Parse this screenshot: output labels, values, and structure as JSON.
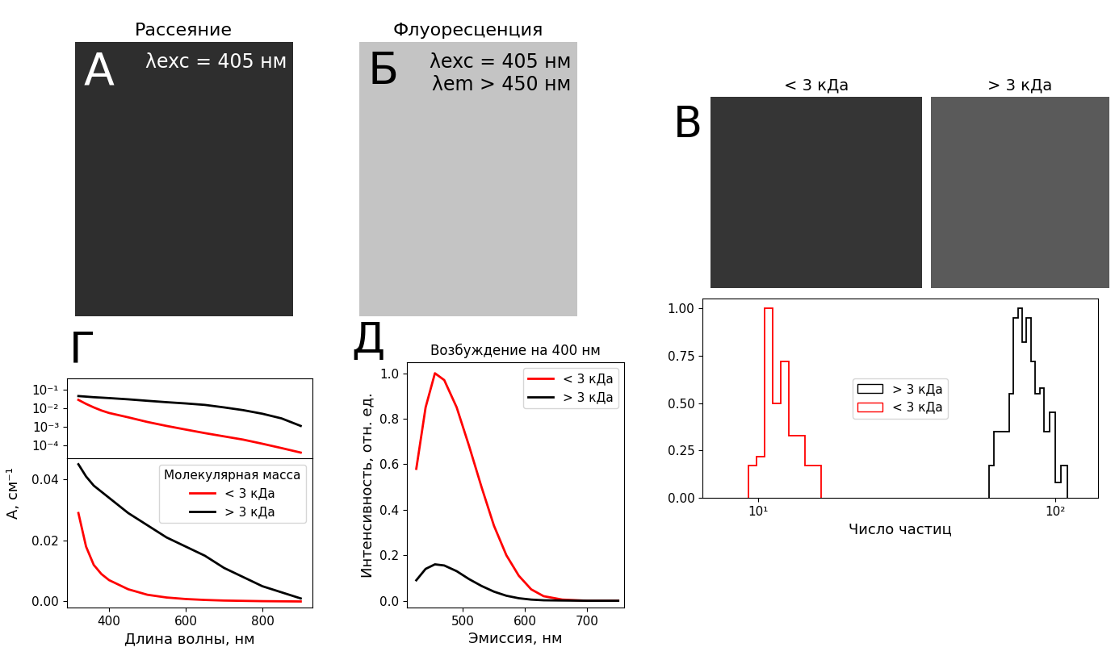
{
  "chart_data": [
    {
      "type": "line",
      "panel": "Г",
      "log": "y",
      "tick_labels": "y",
      "xlim": [
        290,
        930
      ],
      "xticks": [
        400,
        600,
        800
      ],
      "ylim": [
        2e-05,
        0.4
      ],
      "yticks": [
        {
          "value": 0.0001,
          "label": "10⁻⁴"
        },
        {
          "value": 0.001,
          "label": "10⁻³"
        },
        {
          "value": 0.01,
          "label": "10⁻²"
        },
        {
          "value": 0.1,
          "label": "10⁻¹"
        }
      ],
      "x": [
        320,
        340,
        360,
        380,
        400,
        450,
        500,
        550,
        600,
        650,
        700,
        750,
        800,
        850,
        900
      ],
      "series": [
        {
          "name": "< 3 кДа",
          "color": "#ff0000",
          "values": [
            0.028,
            0.017,
            0.011,
            0.0075,
            0.0055,
            0.0032,
            0.0018,
            0.0011,
            0.0007,
            0.00045,
            0.0003,
            0.0002,
            0.00012,
            7e-05,
            4e-05
          ]
        },
        {
          "name": "> 3 кДа",
          "color": "#000000",
          "values": [
            0.045,
            0.042,
            0.039,
            0.037,
            0.035,
            0.03,
            0.025,
            0.021,
            0.018,
            0.015,
            0.011,
            0.0078,
            0.005,
            0.0028,
            0.0011
          ]
        }
      ]
    },
    {
      "type": "line",
      "x_label": "Длина волны, нм",
      "y_label": "A, см⁻¹",
      "legend_title": "Молекулярная масса",
      "legend": "upper right",
      "xlim": [
        290,
        930
      ],
      "xticks": [
        400,
        600,
        800
      ],
      "ylim": [
        -0.002,
        0.047
      ],
      "yticks": [
        {
          "value": 0,
          "label": "0.00"
        },
        {
          "value": 0.02,
          "label": "0.02"
        },
        {
          "value": 0.04,
          "label": "0.04"
        }
      ],
      "x": [
        320,
        340,
        360,
        380,
        400,
        450,
        500,
        550,
        600,
        650,
        700,
        750,
        800,
        850,
        900
      ],
      "series": [
        {
          "name": "< 3 кДа",
          "color": "#ff0000",
          "values": [
            0.029,
            0.018,
            0.012,
            0.009,
            0.007,
            0.004,
            0.0022,
            0.0013,
            0.0008,
            0.0005,
            0.0003,
            0.0002,
            0.0001,
            5e-05,
            0.0
          ]
        },
        {
          "name": "> 3 кДа",
          "color": "#000000",
          "values": [
            0.045,
            0.041,
            0.038,
            0.036,
            0.034,
            0.029,
            0.025,
            0.021,
            0.018,
            0.015,
            0.011,
            0.008,
            0.005,
            0.003,
            0.001
          ]
        }
      ]
    },
    {
      "type": "line",
      "panel": "Д",
      "title": "Возбуждение на 400 нм",
      "x_label": "Эмиссия, нм",
      "y_label": "Интенсивность, отн. ед.",
      "legend": "upper right",
      "xlim": [
        410,
        760
      ],
      "xticks": [
        500,
        600,
        700
      ],
      "ylim": [
        -0.03,
        1.05
      ],
      "yticks": [
        {
          "value": 0,
          "label": "0.0"
        },
        {
          "value": 0.2,
          "label": "0.2"
        },
        {
          "value": 0.4,
          "label": "0.4"
        },
        {
          "value": 0.6,
          "label": "0.6"
        },
        {
          "value": 0.8,
          "label": "0.8"
        },
        {
          "value": 1,
          "label": "1.0"
        }
      ],
      "x": [
        425,
        440,
        455,
        470,
        490,
        510,
        530,
        550,
        570,
        590,
        610,
        630,
        660,
        700,
        750
      ],
      "series": [
        {
          "name": "< 3 кДа",
          "color": "#ff0000",
          "values": [
            0.58,
            0.85,
            1.0,
            0.97,
            0.85,
            0.68,
            0.5,
            0.33,
            0.2,
            0.11,
            0.05,
            0.02,
            0.005,
            0.0,
            0.0
          ]
        },
        {
          "name": "> 3 кДа",
          "color": "#000000",
          "values": [
            0.09,
            0.14,
            0.16,
            0.155,
            0.13,
            0.095,
            0.065,
            0.04,
            0.022,
            0.011,
            0.005,
            0.002,
            0.001,
            0.0,
            0.0
          ]
        }
      ]
    },
    {
      "type": "histogram",
      "log": "x",
      "x_label": "Число частиц",
      "legend": "center",
      "xlim": [
        6.5,
        140
      ],
      "xticks": [
        {
          "value": 10,
          "label": "10¹"
        },
        {
          "value": 100,
          "label": "10²"
        }
      ],
      "ylim": [
        0,
        1.05
      ],
      "yticks": [
        {
          "value": 0,
          "label": "0.00"
        },
        {
          "value": 0.25,
          "label": "0.25"
        },
        {
          "value": 0.5,
          "label": "0.50"
        },
        {
          "value": 0.75,
          "label": "0.75"
        },
        {
          "value": 1,
          "label": "1.00"
        }
      ],
      "series": [
        {
          "name": "> 3 кДа",
          "color": "#000000",
          "bins": [
            60,
            62.5,
            65,
            67.5,
            70,
            72.5,
            75,
            77.5,
            80,
            83,
            86,
            89,
            92,
            96,
            100,
            105,
            110
          ],
          "counts": [
            0.17,
            0.35,
            0.35,
            0.35,
            0.55,
            0.95,
            1.0,
            0.82,
            0.95,
            0.72,
            0.55,
            0.58,
            0.35,
            0.45,
            0.08,
            0.17
          ]
        },
        {
          "name": "< 3 кДа",
          "color": "#ff0000",
          "bins": [
            9.3,
            9.9,
            10.5,
            11.2,
            11.9,
            12.7,
            13.5,
            14.4,
            15.3,
            16.3
          ],
          "counts": [
            0.17,
            0.22,
            1.0,
            0.5,
            0.72,
            0.33,
            0.33,
            0.17,
            0.17
          ]
        }
      ]
    }
  ],
  "images": [
    {
      "panel": "А",
      "title": "Рассеяние",
      "annotations": [
        "λexc = 405 нм"
      ],
      "color": "#2e2e2e"
    },
    {
      "panel": "Б",
      "title": "Флуоресценция",
      "annotations": [
        "λexc = 405 нм",
        "λem > 450 нм"
      ],
      "color": "#c4c4c4"
    },
    {
      "panel": "В",
      "title": "< 3 кДа",
      "color": "#353535"
    },
    {
      "title": "> 3 кДа",
      "color": "#5a5a5a"
    }
  ]
}
